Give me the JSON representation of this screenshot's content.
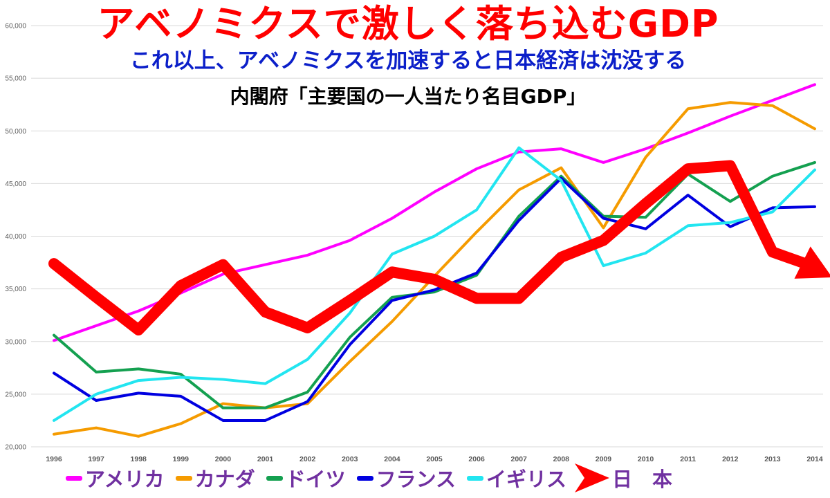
{
  "titles": {
    "main": "アベノミクスで激しく落ち込むGDP",
    "sub": "これ以上、アベノミクスを加速すると日本経済は沈没する",
    "source": "内閣府「主要国の一人当たり名目GDP」"
  },
  "colors": {
    "main_title": "#ff0000",
    "sub_title": "#0b1fc9",
    "source_title": "#000000",
    "legend_text": "#7030a0",
    "grid": "#d9d9d9",
    "axis_text": "#595959"
  },
  "chart_data": {
    "type": "line",
    "x": [
      "1996",
      "1997",
      "1998",
      "1999",
      "2000",
      "2001",
      "2002",
      "2003",
      "2004",
      "2005",
      "2006",
      "2007",
      "2008",
      "2009",
      "2010",
      "2011",
      "2012",
      "2013",
      "2014"
    ],
    "ylim": [
      20000,
      60000
    ],
    "yticks": [
      "20,000",
      "25,000",
      "30,000",
      "35,000",
      "40,000",
      "45,000",
      "50,000",
      "55,000",
      "60,000"
    ],
    "grid": true,
    "legend_position": "bottom",
    "series": [
      {
        "name": "アメリカ",
        "color": "#ff00ff",
        "values": [
          30100,
          31500,
          32900,
          34600,
          36400,
          37300,
          38200,
          39600,
          41700,
          44200,
          46400,
          48000,
          48300,
          47000,
          48300,
          49800,
          51400,
          52900,
          54400
        ]
      },
      {
        "name": "カナダ",
        "color": "#f59b00",
        "values": [
          21200,
          21800,
          21000,
          22200,
          24100,
          23700,
          24100,
          28100,
          31900,
          36200,
          40400,
          44400,
          46500,
          40800,
          47500,
          52100,
          52700,
          52400,
          50200
        ]
      },
      {
        "name": "ドイツ",
        "color": "#14a050",
        "values": [
          30600,
          27100,
          27400,
          26900,
          23700,
          23700,
          25200,
          30400,
          34200,
          34700,
          36300,
          41900,
          45700,
          41900,
          41800,
          45900,
          43300,
          45700,
          47000
        ]
      },
      {
        "name": "フランス",
        "color": "#0000e0",
        "values": [
          27000,
          24400,
          25100,
          24800,
          22500,
          22500,
          24300,
          29700,
          33900,
          34900,
          36500,
          41500,
          45500,
          41700,
          40700,
          43900,
          40900,
          42700,
          42800
        ]
      },
      {
        "name": "イギリス",
        "color": "#22e5f0",
        "values": [
          22500,
          25000,
          26300,
          26600,
          26400,
          26000,
          28300,
          32700,
          38300,
          40000,
          42500,
          48400,
          45300,
          37200,
          38400,
          41000,
          41300,
          42300,
          46300
        ]
      },
      {
        "name": "日　本",
        "color": "#ff0000",
        "values": [
          37400,
          34200,
          31100,
          35300,
          37300,
          32800,
          31300,
          33900,
          36600,
          35900,
          34100,
          34100,
          38000,
          39600,
          43100,
          46400,
          46700,
          38500,
          36500
        ]
      }
    ]
  }
}
